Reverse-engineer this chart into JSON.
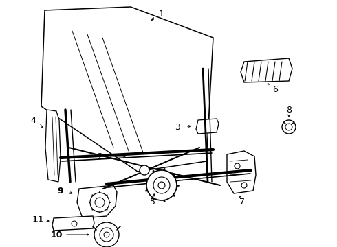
{
  "bg_color": "#ffffff",
  "line_color": "#000000",
  "fig_w": 4.9,
  "fig_h": 3.6,
  "dpi": 100
}
